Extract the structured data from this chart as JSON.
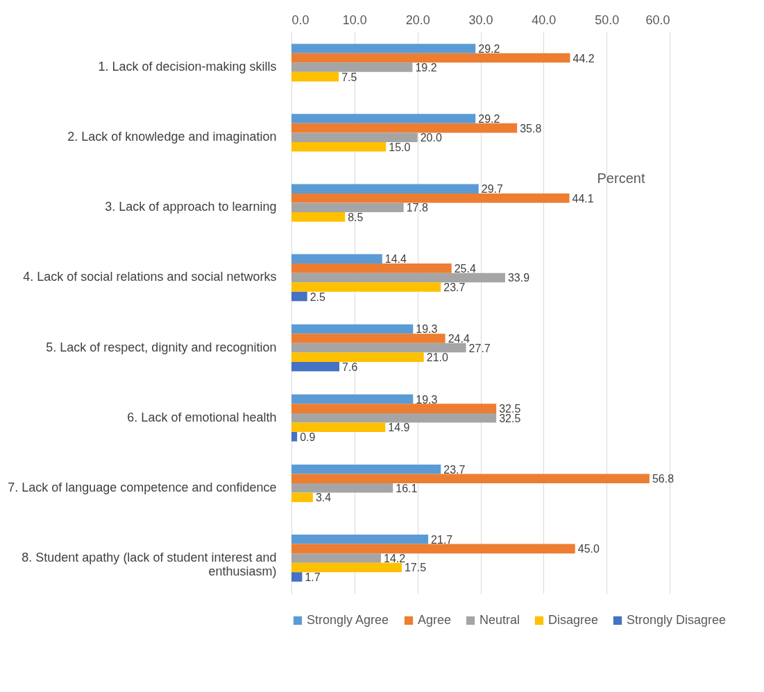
{
  "chart_data": {
    "type": "bar",
    "orientation": "horizontal",
    "legend": "bottom",
    "grid": "x",
    "annotations": [
      "Percent"
    ],
    "categories": [
      "1. Lack of decision-making skills",
      "2. Lack of knowledge and imagination",
      "3. Lack of approach to learning",
      "4. Lack of social relations and social networks",
      "5. Lack of respect, dignity and recognition",
      "6. Lack of emotional health",
      "7. Lack of language competence and confidence",
      "8. Student apathy (lack of student interest and enthusiasm)"
    ],
    "xlim": [
      0,
      60
    ],
    "xticks": [
      {
        "value": 0,
        "label": "0.0"
      },
      {
        "value": 10,
        "label": "10.0"
      },
      {
        "value": 20,
        "label": "20.0"
      },
      {
        "value": 30,
        "label": "30.0"
      },
      {
        "value": 40,
        "label": "40.0"
      },
      {
        "value": 50,
        "label": "50.0"
      },
      {
        "value": 60,
        "label": "60.0"
      }
    ],
    "series": [
      {
        "name": "Strongly Agree",
        "color": "#5b9bd5",
        "values": [
          29.2,
          29.2,
          29.7,
          14.4,
          19.3,
          19.3,
          23.7,
          21.7
        ],
        "value_labels": [
          "29.2",
          "29.2",
          "29.7",
          "14.4",
          "19.3",
          "19.3",
          "23.7",
          "21.7"
        ]
      },
      {
        "name": "Agree",
        "color": "#ed7d31",
        "values": [
          44.2,
          35.8,
          44.1,
          25.4,
          24.4,
          32.5,
          56.8,
          45.0
        ],
        "value_labels": [
          "44.2",
          "35.8",
          "44.1",
          "25.4",
          "24.4",
          "32.5",
          "56.8",
          "45.0"
        ]
      },
      {
        "name": "Neutral",
        "color": "#a5a5a5",
        "values": [
          19.2,
          20.0,
          17.8,
          33.9,
          27.7,
          32.5,
          16.1,
          14.2
        ],
        "value_labels": [
          "19.2",
          "20.0",
          "17.8",
          "33.9",
          "27.7",
          "32.5",
          "16.1",
          "14.2"
        ]
      },
      {
        "name": "Disagree",
        "color": "#ffc000",
        "values": [
          7.5,
          15.0,
          8.5,
          23.7,
          21.0,
          14.9,
          3.4,
          17.5
        ],
        "value_labels": [
          "7.5",
          "15.0",
          "8.5",
          "23.7",
          "21.0",
          "14.9",
          "3.4",
          "17.5"
        ]
      },
      {
        "name": "Strongly Disagree",
        "color": "#4472c4",
        "values": [
          null,
          null,
          null,
          2.5,
          7.6,
          0.9,
          null,
          1.7
        ],
        "value_labels": [
          null,
          null,
          null,
          "2.5",
          "7.6",
          "0.9",
          null,
          "1.7"
        ]
      }
    ]
  }
}
